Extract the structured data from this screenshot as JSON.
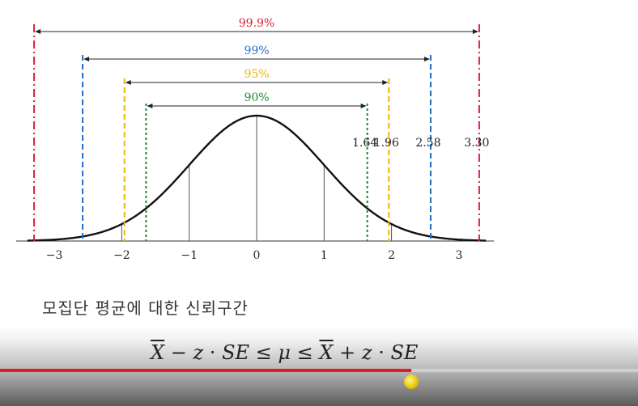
{
  "diagram": {
    "x_ticks": [
      "−3",
      "−2",
      "−1",
      "0",
      "1",
      "2",
      "3"
    ],
    "intervals": [
      {
        "label": "99.9%",
        "color": "#d81e3a",
        "z": 3.3,
        "z_label": "3.30",
        "style": "dashdot"
      },
      {
        "label": "99%",
        "color": "#1f6fc4",
        "z": 2.58,
        "z_label": "2.58",
        "style": "dashed"
      },
      {
        "label": "95%",
        "color": "#f0b400",
        "z": 1.96,
        "z_label": "1.96",
        "style": "dashed"
      },
      {
        "label": "90%",
        "color": "#1a8a2e",
        "z": 1.64,
        "z_label": "1.64",
        "style": "dotted"
      }
    ],
    "guide_lines_z": [
      -2,
      -1,
      0,
      1,
      2
    ]
  },
  "caption": "모집단 평균에 대한 신뢰구간",
  "formula": {
    "xbar": "X",
    "minus": "−",
    "z1": "z",
    "dot1": "·",
    "se1": "SE",
    "le1": "≤",
    "mu": "μ",
    "le2": "≤",
    "xbar2": "X",
    "plus": "+",
    "z2": "z",
    "dot2": "·",
    "se2": "SE"
  },
  "video": {
    "progress": 0.645
  }
}
